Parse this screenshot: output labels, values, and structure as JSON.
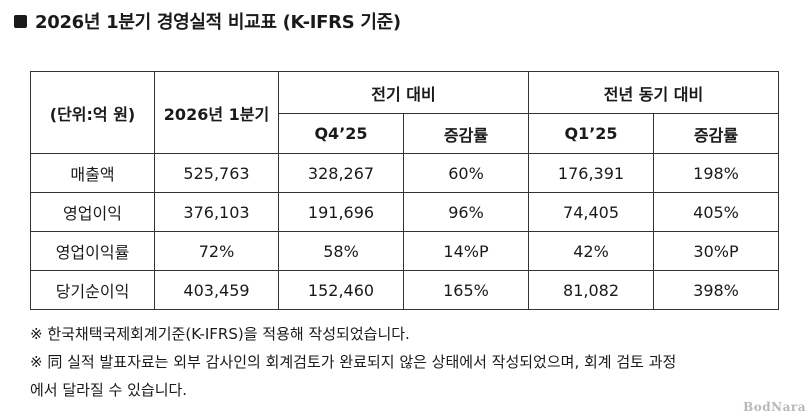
{
  "title": "2026년 1분기 경영실적 비교표 (K-IFRS 기준)",
  "table": {
    "unit_header": "(단위:억 원)",
    "current_header": "2026년 1분기",
    "qoq_group": "전기 대비",
    "yoy_group": "전년 동기 대비",
    "qoq_prev": "Q4’25",
    "qoq_rate": "증감률",
    "yoy_prev": "Q1’25",
    "yoy_rate": "증감률",
    "rows": [
      {
        "label": "매출액",
        "current": "525,763",
        "qoq_prev": "328,267",
        "qoq_rate": "60%",
        "yoy_prev": "176,391",
        "yoy_rate": "198%"
      },
      {
        "label": "영업이익",
        "current": "376,103",
        "qoq_prev": "191,696",
        "qoq_rate": "96%",
        "yoy_prev": "74,405",
        "yoy_rate": "405%"
      },
      {
        "label": "영업이익률",
        "current": "72%",
        "qoq_prev": "58%",
        "qoq_rate": "14%P",
        "yoy_prev": "42%",
        "yoy_rate": "30%P"
      },
      {
        "label": "당기순이익",
        "current": "403,459",
        "qoq_prev": "152,460",
        "qoq_rate": "165%",
        "yoy_prev": "81,082",
        "yoy_rate": "398%"
      }
    ]
  },
  "notes": {
    "note1": "※ 한국채택국제회계기준(K-IFRS)을 적용해 작성되었습니다.",
    "note2_line1": "※ 同 실적 발표자료는 외부 감사인의 회계검토가 완료되지 않은 상태에서 작성되었으며, 회계 검토 과정",
    "note2_line2": "에서 달라질 수 있습니다."
  },
  "watermark": "BodNara"
}
